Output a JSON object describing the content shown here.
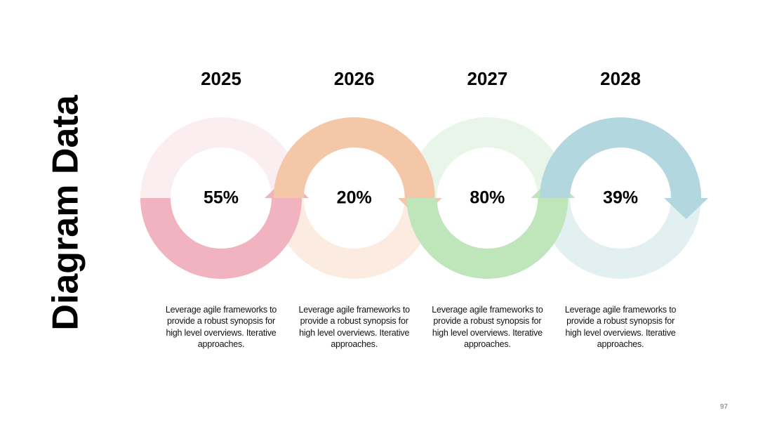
{
  "title": "Diagram Data",
  "items": [
    {
      "year": "2025",
      "percent": "55%",
      "text": "Leverage agile frameworks to provide a robust synopsis for high level overviews. Iterative approaches."
    },
    {
      "year": "2026",
      "percent": "20%",
      "text": "Leverage agile frameworks to provide a robust synopsis for high level overviews. Iterative approaches."
    },
    {
      "year": "2027",
      "percent": "80%",
      "text": "Leverage agile frameworks to provide a robust synopsis for high level overviews. Iterative approaches."
    },
    {
      "year": "2028",
      "percent": "39%",
      "text": "Leverage agile frameworks to provide a robust synopsis for high level overviews. Iterative approaches."
    }
  ],
  "page_number": "97"
}
